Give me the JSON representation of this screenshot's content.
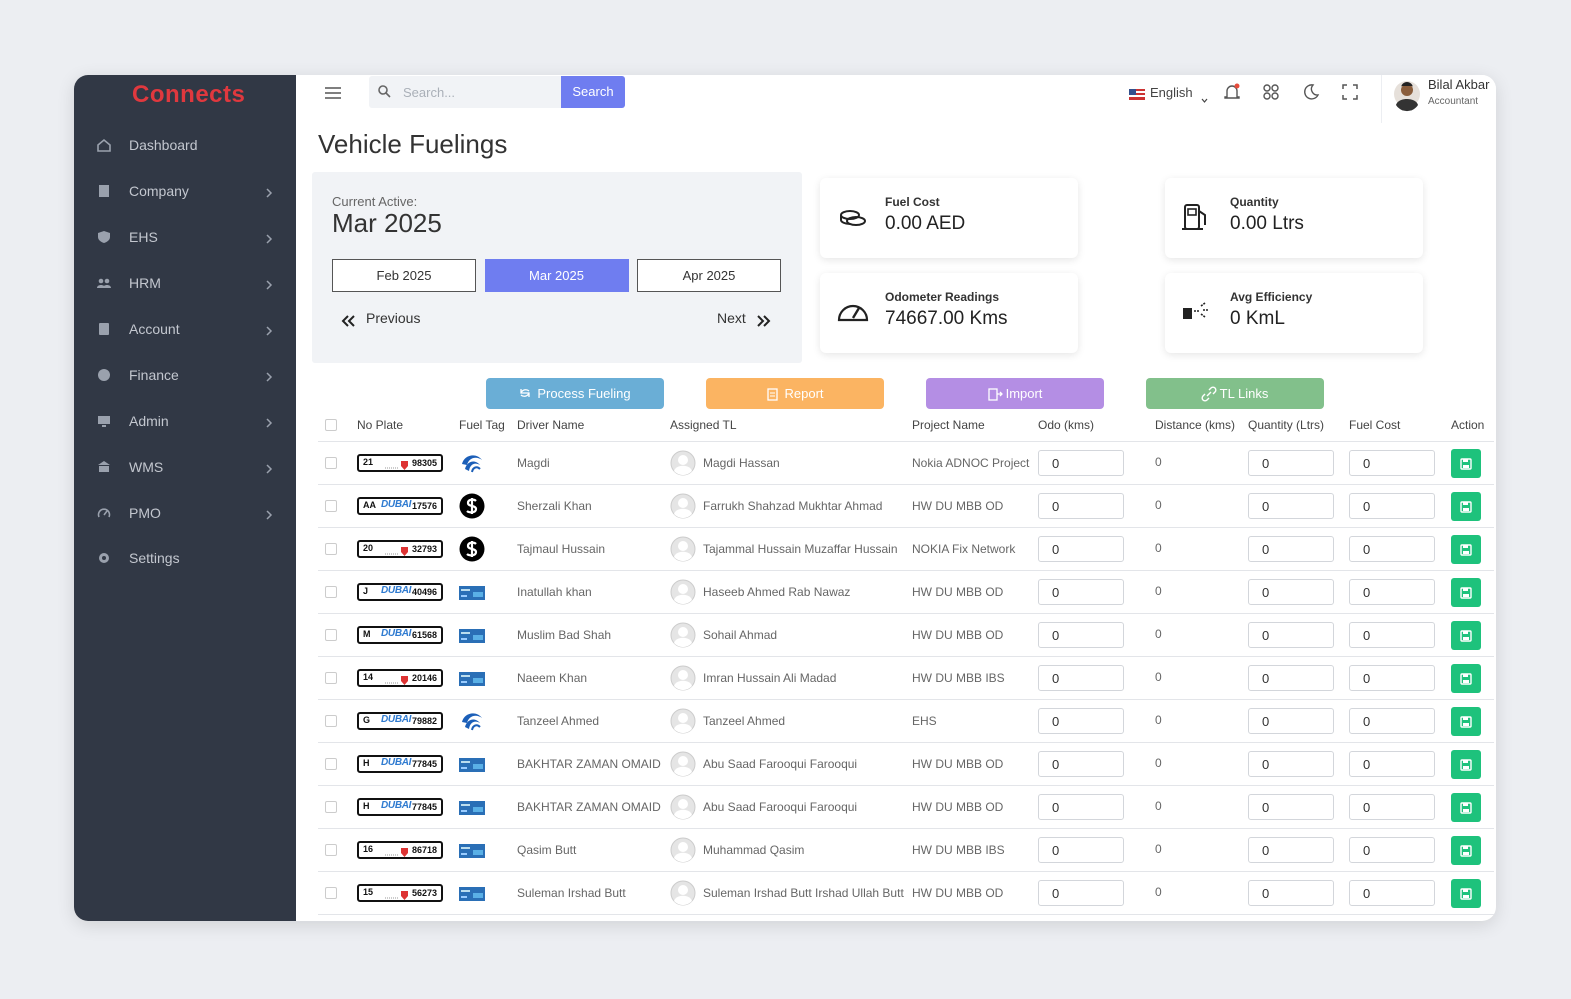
{
  "logo": "Connects",
  "sidebar": [
    {
      "label": "Dashboard"
    },
    {
      "label": "Company",
      "submenu": true
    },
    {
      "label": "EHS",
      "submenu": true
    },
    {
      "label": "HRM",
      "submenu": true
    },
    {
      "label": "Account",
      "submenu": true
    },
    {
      "label": "Finance",
      "submenu": true
    },
    {
      "label": "Admin",
      "submenu": true
    },
    {
      "label": "WMS",
      "submenu": true
    },
    {
      "label": "PMO",
      "submenu": true
    },
    {
      "label": "Settings"
    }
  ],
  "topbar": {
    "search_placeholder": "Search...",
    "search_button": "Search",
    "language": "English",
    "user_name": "Bilal Akbar",
    "user_role": "Accountant"
  },
  "title": "Vehicle Fuelings",
  "period": {
    "label": "Current Active:",
    "current": "Mar 2025",
    "months": [
      "Feb 2025",
      "Mar 2025",
      "Apr 2025"
    ],
    "active_index": 1,
    "previous": "Previous",
    "next": "Next"
  },
  "stats": [
    {
      "label": "Fuel Cost",
      "value": "0.00 AED"
    },
    {
      "label": "Quantity",
      "value": "0.00 Ltrs"
    },
    {
      "label": "Odometer Readings",
      "value": "74667.00 Kms"
    },
    {
      "label": "Avg Efficiency",
      "value": "0 KmL"
    }
  ],
  "actions": [
    {
      "label": "Process Fueling",
      "color": "#6aaed6"
    },
    {
      "label": "Report",
      "color": "#fbb462"
    },
    {
      "label": "Import",
      "color": "#b48ee4"
    },
    {
      "label": "TL Links",
      "color": "#82c08b"
    }
  ],
  "table": {
    "columns": [
      "No Plate",
      "Fuel Tag",
      "Driver Name",
      "Assigned TL",
      "Project Name",
      "Odo (kms)",
      "Distance (kms)",
      "Quantity (Ltrs)",
      "Fuel Cost",
      "Action"
    ],
    "rows": [
      {
        "plate": {
          "code": "21",
          "number": "98305"
        },
        "fuel_tag": "adnoc",
        "driver": "Magdi",
        "tl": "Magdi Hassan",
        "project": "Nokia ADNOC Project",
        "odo": 0,
        "distance": 0,
        "quantity": 0,
        "fuel_cost": 0
      },
      {
        "plate": {
          "code": "AA",
          "city": "DUBAI",
          "number": "17576"
        },
        "fuel_tag": "dollar",
        "driver": "Sherzali Khan",
        "tl": "Farrukh Shahzad Mukhtar Ahmad",
        "project": "HW DU MBB OD",
        "odo": 0,
        "distance": 0,
        "quantity": 0,
        "fuel_cost": 0
      },
      {
        "plate": {
          "code": "20",
          "number": "32793"
        },
        "fuel_tag": "dollar",
        "driver": "Tajmaul Hussain",
        "tl": "Tajammal Hussain Muzaffar Hussain",
        "project": "NOKIA Fix Network",
        "odo": 0,
        "distance": 0,
        "quantity": 0,
        "fuel_cost": 0
      },
      {
        "plate": {
          "code": "J",
          "city": "DUBAI",
          "number": "40496"
        },
        "fuel_tag": "card",
        "driver": "Inatullah khan",
        "tl": "Haseeb Ahmed Rab Nawaz",
        "project": "HW DU MBB OD",
        "odo": 0,
        "distance": 0,
        "quantity": 0,
        "fuel_cost": 0
      },
      {
        "plate": {
          "code": "M",
          "city": "DUBAI",
          "number": "61568"
        },
        "fuel_tag": "card",
        "driver": "Muslim Bad Shah",
        "tl": "Sohail Ahmad",
        "project": "HW DU MBB OD",
        "odo": 0,
        "distance": 0,
        "quantity": 0,
        "fuel_cost": 0
      },
      {
        "plate": {
          "code": "14",
          "number": "20146"
        },
        "fuel_tag": "card",
        "driver": "Naeem Khan",
        "tl": "Imran Hussain Ali Madad",
        "project": "HW DU MBB IBS",
        "odo": 0,
        "distance": 0,
        "quantity": 0,
        "fuel_cost": 0
      },
      {
        "plate": {
          "code": "G",
          "city": "DUBAI",
          "number": "79882"
        },
        "fuel_tag": "adnoc",
        "driver": "Tanzeel Ahmed",
        "tl": "Tanzeel Ahmed",
        "project": "EHS",
        "odo": 0,
        "distance": 0,
        "quantity": 0,
        "fuel_cost": 0
      },
      {
        "plate": {
          "code": "H",
          "city": "DUBAI",
          "number": "77845"
        },
        "fuel_tag": "card",
        "driver": "BAKHTAR ZAMAN OMAID",
        "tl": "Abu Saad Farooqui Farooqui",
        "project": "HW DU MBB OD",
        "odo": 0,
        "distance": 0,
        "quantity": 0,
        "fuel_cost": 0
      },
      {
        "plate": {
          "code": "H",
          "city": "DUBAI",
          "number": "77845"
        },
        "fuel_tag": "card",
        "driver": "BAKHTAR ZAMAN OMAID",
        "tl": "Abu Saad Farooqui Farooqui",
        "project": "HW DU MBB OD",
        "odo": 0,
        "distance": 0,
        "quantity": 0,
        "fuel_cost": 0
      },
      {
        "plate": {
          "code": "16",
          "number": "86718"
        },
        "fuel_tag": "card",
        "driver": "Qasim Butt",
        "tl": "Muhammad Qasim",
        "project": "HW DU MBB IBS",
        "odo": 0,
        "distance": 0,
        "quantity": 0,
        "fuel_cost": 0
      },
      {
        "plate": {
          "code": "15",
          "number": "56273"
        },
        "fuel_tag": "card",
        "driver": "Suleman Irshad Butt",
        "tl": "Suleman Irshad Butt Irshad Ullah Butt",
        "project": "HW DU MBB OD",
        "odo": 0,
        "distance": 0,
        "quantity": 0,
        "fuel_cost": 0
      }
    ]
  }
}
